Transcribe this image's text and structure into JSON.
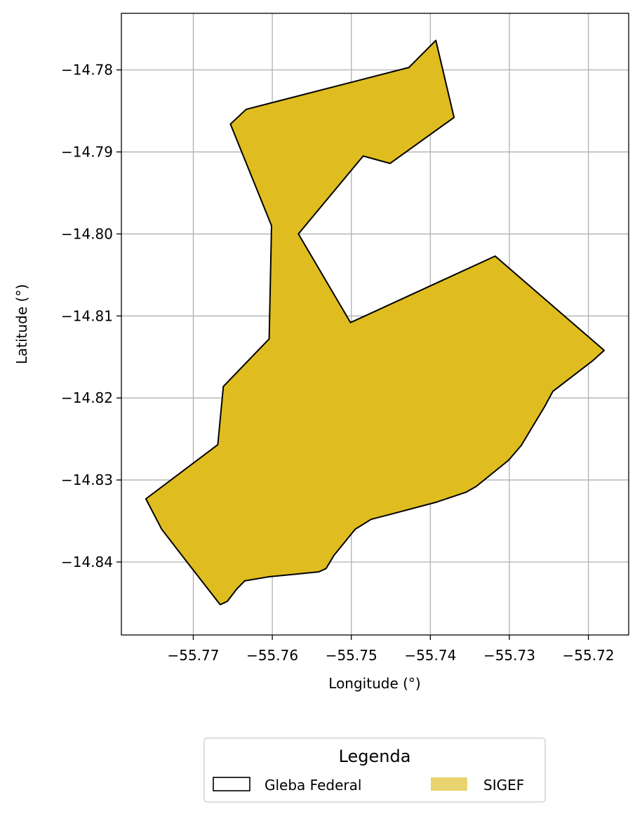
{
  "chart_data": {
    "type": "map",
    "xlabel": "Longitude (°)",
    "ylabel": "Latitude (°)",
    "xlim": [
      -55.7791,
      -55.7149
    ],
    "ylim": [
      -14.8489,
      -14.7731
    ],
    "grid": true,
    "x_ticks": [
      -55.77,
      -55.76,
      -55.75,
      -55.74,
      -55.73,
      -55.72
    ],
    "x_tick_labels": [
      "−55.77",
      "−55.76",
      "−55.75",
      "−55.74",
      "−55.73",
      "−55.72"
    ],
    "y_ticks": [
      -14.78,
      -14.79,
      -14.8,
      -14.81,
      -14.82,
      -14.83,
      -14.84
    ],
    "y_tick_labels": [
      "−14.78",
      "−14.79",
      "−14.80",
      "−14.81",
      "−14.82",
      "−14.83",
      "−14.84"
    ],
    "polygon": {
      "fill": "#dfbd20",
      "stroke": "#000000",
      "coordinates": [
        [
          -55.7653,
          -14.7866
        ],
        [
          -55.7633,
          -14.7848
        ],
        [
          -55.7427,
          -14.7797
        ],
        [
          -55.7393,
          -14.7764
        ],
        [
          -55.737,
          -14.7858
        ],
        [
          -55.7451,
          -14.7914
        ],
        [
          -55.7485,
          -14.7905
        ],
        [
          -55.7567,
          -14.8
        ],
        [
          -55.7501,
          -14.8108
        ],
        [
          -55.7318,
          -14.8027
        ],
        [
          -55.718,
          -14.8142
        ],
        [
          -55.7195,
          -14.8155
        ],
        [
          -55.7245,
          -14.8192
        ],
        [
          -55.7255,
          -14.821
        ],
        [
          -55.7285,
          -14.8258
        ],
        [
          -55.7301,
          -14.8276
        ],
        [
          -55.7342,
          -14.8308
        ],
        [
          -55.7355,
          -14.8315
        ],
        [
          -55.7392,
          -14.8327
        ],
        [
          -55.7451,
          -14.8342
        ],
        [
          -55.7475,
          -14.8348
        ],
        [
          -55.7495,
          -14.836
        ],
        [
          -55.7522,
          -14.8392
        ],
        [
          -55.7532,
          -14.8408
        ],
        [
          -55.7541,
          -14.8412
        ],
        [
          -55.7572,
          -14.8415
        ],
        [
          -55.7604,
          -14.8418
        ],
        [
          -55.7635,
          -14.8423
        ],
        [
          -55.7645,
          -14.8433
        ],
        [
          -55.7657,
          -14.8448
        ],
        [
          -55.7666,
          -14.8452
        ],
        [
          -55.7708,
          -14.84
        ],
        [
          -55.774,
          -14.836
        ],
        [
          -55.776,
          -14.8323
        ],
        [
          -55.7669,
          -14.8257
        ],
        [
          -55.7662,
          -14.8186
        ],
        [
          -55.7604,
          -14.8128
        ],
        [
          -55.7601,
          -14.799
        ]
      ]
    },
    "legend": {
      "title": "Legenda",
      "placement": "bottom-center, below plot",
      "entries": [
        {
          "label": "Gleba Federal",
          "swatch": "outline",
          "color": "#000000"
        },
        {
          "label": "SIGEF",
          "swatch": "fill",
          "color": "#e8d36f"
        }
      ]
    }
  }
}
